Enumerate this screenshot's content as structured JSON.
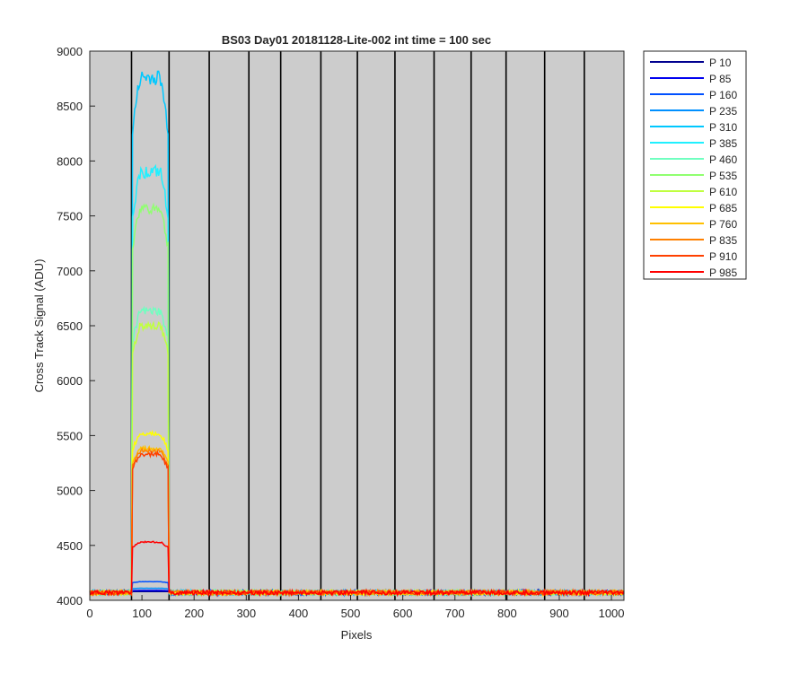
{
  "chart_data": {
    "type": "line",
    "title": "BS03 Day01 20181128-Lite-002 int time = 100 sec",
    "xlabel": "Pixels",
    "ylabel": "Cross Track Signal (ADU)",
    "xlim": [
      0,
      1024
    ],
    "ylim": [
      4000,
      9000
    ],
    "xticks": [
      0,
      100,
      200,
      300,
      400,
      500,
      600,
      700,
      800,
      900,
      1000
    ],
    "yticks": [
      4000,
      4500,
      5000,
      5500,
      6000,
      6500,
      7000,
      7500,
      8000,
      8500,
      9000
    ],
    "background": "#cccccc",
    "grid": false,
    "legend_position": "outside-right",
    "segment_boundaries": [
      80,
      152,
      229,
      305,
      366,
      443,
      513,
      585,
      660,
      731,
      798,
      872,
      948
    ],
    "baseline": 4070,
    "peak_range": [
      82,
      150
    ],
    "series": [
      {
        "name": "P 10",
        "color": "#00008f",
        "peak": 4080
      },
      {
        "name": "P 85",
        "color": "#0000ef",
        "peak": 4090
      },
      {
        "name": "P 160",
        "color": "#0050ff",
        "peak": 4170
      },
      {
        "name": "P 235",
        "color": "#0090ff",
        "peak": 4110
      },
      {
        "name": "P 310",
        "color": "#00c8ff",
        "peak": 8760
      },
      {
        "name": "P 385",
        "color": "#20f0ff",
        "peak": 7900
      },
      {
        "name": "P 460",
        "color": "#70ffc0",
        "peak": 6630
      },
      {
        "name": "P 535",
        "color": "#90ff70",
        "peak": 7570
      },
      {
        "name": "P 610",
        "color": "#c0ff40",
        "peak": 6500
      },
      {
        "name": "P 685",
        "color": "#ffff00",
        "peak": 5520
      },
      {
        "name": "P 760",
        "color": "#ffc000",
        "peak": 5380
      },
      {
        "name": "P 835",
        "color": "#ff8000",
        "peak": 5360
      },
      {
        "name": "P 910",
        "color": "#ff4000",
        "peak": 5330
      },
      {
        "name": "P 985",
        "color": "#ff0000",
        "peak": 4530
      }
    ]
  }
}
